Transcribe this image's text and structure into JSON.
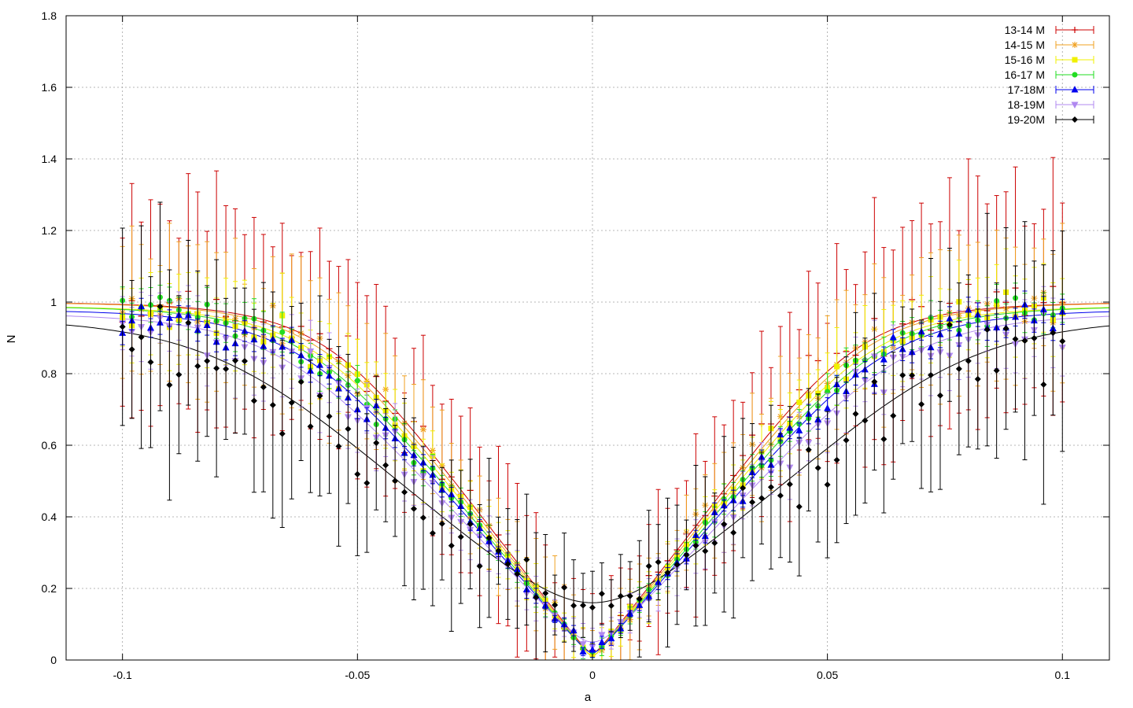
{
  "chart_data": {
    "type": "scatter",
    "title": "",
    "xlabel": "a",
    "ylabel": "N",
    "xlim": [
      -0.112,
      0.11
    ],
    "ylim": [
      0,
      1.8
    ],
    "xticks": [
      -0.1,
      -0.05,
      0,
      0.05,
      0.1
    ],
    "xtick_labels": [
      "-0.1",
      "-0.05",
      "0",
      "0.05",
      "0.1"
    ],
    "yticks": [
      0,
      0.2,
      0.4,
      0.6,
      0.8,
      1,
      1.2,
      1.4,
      1.6,
      1.8
    ],
    "ytick_labels": [
      "0",
      "0.2",
      "0.4",
      "0.6",
      "0.8",
      "1",
      "1.2",
      "1.4",
      "1.6",
      "1.8"
    ],
    "grid": true,
    "legend_position": "top-right",
    "error_bars": true,
    "fit_curves": true,
    "series": [
      {
        "name": "13-14 M",
        "color": "#cc0000",
        "marker": "plus",
        "fit_min": 0.02,
        "slope": 17.0,
        "sat": 1.0,
        "scatter": 0.06,
        "err_base": 0.2,
        "err_scale": 0.18,
        "seed": 11
      },
      {
        "name": "14-15 M",
        "color": "#f0a020",
        "marker": "star",
        "fit_min": 0.01,
        "slope": 16.5,
        "sat": 1.0,
        "scatter": 0.05,
        "err_base": 0.12,
        "err_scale": 0.12,
        "seed": 23
      },
      {
        "name": "15-16 M",
        "color": "#f0f000",
        "marker": "square",
        "fit_min": 0.01,
        "slope": 16.0,
        "sat": 0.99,
        "scatter": 0.04,
        "err_base": 0.07,
        "err_scale": 0.06,
        "seed": 37
      },
      {
        "name": "16-17 M",
        "color": "#22dd22",
        "marker": "circle",
        "fit_min": 0.02,
        "slope": 15.5,
        "sat": 0.99,
        "scatter": 0.03,
        "err_base": 0.03,
        "err_scale": 0.03,
        "seed": 41
      },
      {
        "name": "17-18M",
        "color": "#0000ee",
        "marker": "triangle",
        "fit_min": 0.02,
        "slope": 15.0,
        "sat": 0.98,
        "scatter": 0.04,
        "err_base": 0.02,
        "err_scale": 0.02,
        "seed": 53
      },
      {
        "name": "18-19M",
        "color": "#b088f0",
        "marker": "triangle-down",
        "fit_min": 0.05,
        "slope": 14.0,
        "sat": 0.97,
        "scatter": 0.05,
        "err_base": 0.06,
        "err_scale": 0.06,
        "seed": 67
      },
      {
        "name": "19-20M",
        "color": "#000000",
        "marker": "diamond",
        "fit_min": 0.16,
        "slope": 11.5,
        "sat": 0.96,
        "scatter": 0.09,
        "err_base": 0.17,
        "err_scale": 0.18,
        "seed": 79
      }
    ],
    "x_range_points": [
      -0.1,
      0.1
    ],
    "point_step": 0.002
  }
}
